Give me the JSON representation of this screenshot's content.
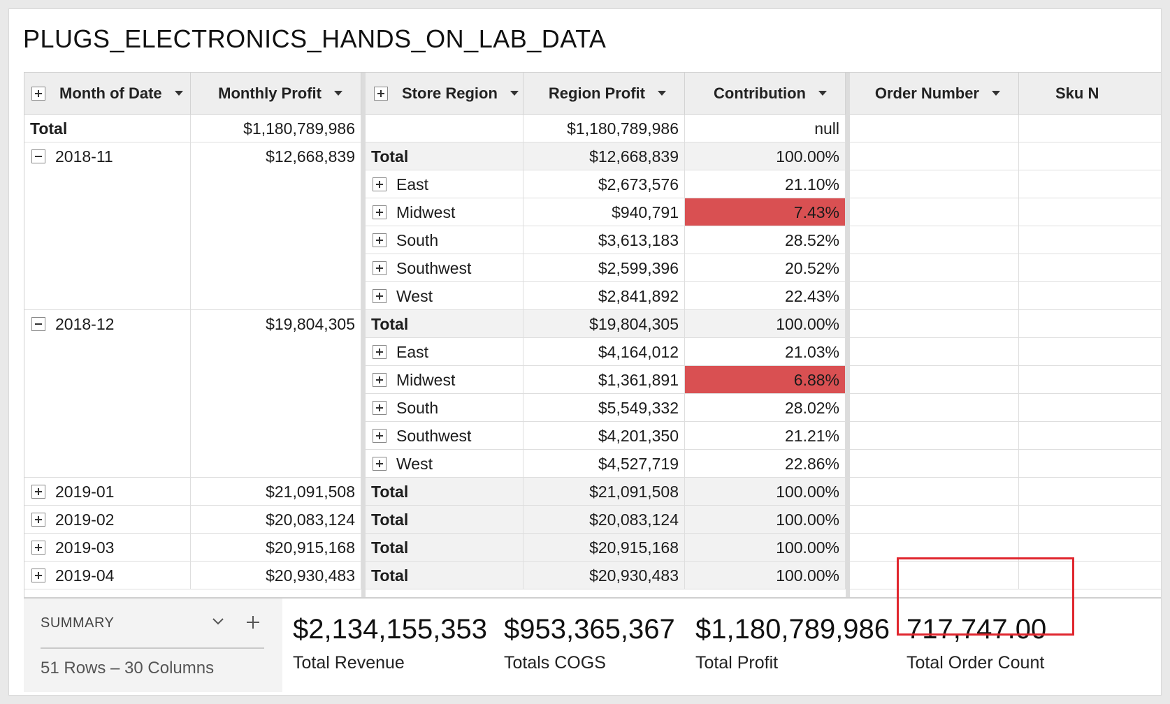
{
  "title": "PLUGS_ELECTRONICS_HANDS_ON_LAB_DATA",
  "headers": {
    "month_of_date": "Month of Date",
    "monthly_profit": "Monthly Profit",
    "store_region": "Store Region",
    "region_profit": "Region Profit",
    "contribution": "Contribution",
    "order_number": "Order Number",
    "sku_number": "Sku N"
  },
  "total_row": {
    "label": "Total",
    "monthly_profit": "$1,180,789,986",
    "region_profit": "$1,180,789,986",
    "contribution": "null"
  },
  "subtotal_label": "Total",
  "months": [
    {
      "month": "2018-11",
      "expanded": true,
      "profit": "$12,668,839",
      "total_profit": "$12,668,839",
      "total_contribution": "100.00%",
      "regions": [
        {
          "name": "East",
          "profit": "$2,673,576",
          "contribution": "21.10%",
          "flag": false
        },
        {
          "name": "Midwest",
          "profit": "$940,791",
          "contribution": "7.43%",
          "flag": true
        },
        {
          "name": "South",
          "profit": "$3,613,183",
          "contribution": "28.52%",
          "flag": false
        },
        {
          "name": "Southwest",
          "profit": "$2,599,396",
          "contribution": "20.52%",
          "flag": false
        },
        {
          "name": "West",
          "profit": "$2,841,892",
          "contribution": "22.43%",
          "flag": false
        }
      ]
    },
    {
      "month": "2018-12",
      "expanded": true,
      "profit": "$19,804,305",
      "total_profit": "$19,804,305",
      "total_contribution": "100.00%",
      "regions": [
        {
          "name": "East",
          "profit": "$4,164,012",
          "contribution": "21.03%",
          "flag": false
        },
        {
          "name": "Midwest",
          "profit": "$1,361,891",
          "contribution": "6.88%",
          "flag": true
        },
        {
          "name": "South",
          "profit": "$5,549,332",
          "contribution": "28.02%",
          "flag": false
        },
        {
          "name": "Southwest",
          "profit": "$4,201,350",
          "contribution": "21.21%",
          "flag": false
        },
        {
          "name": "West",
          "profit": "$4,527,719",
          "contribution": "22.86%",
          "flag": false
        }
      ]
    },
    {
      "month": "2019-01",
      "expanded": false,
      "profit": "$21,091,508",
      "total_profit": "$21,091,508",
      "total_contribution": "100.00%",
      "regions": []
    },
    {
      "month": "2019-02",
      "expanded": false,
      "profit": "$20,083,124",
      "total_profit": "$20,083,124",
      "total_contribution": "100.00%",
      "regions": []
    },
    {
      "month": "2019-03",
      "expanded": false,
      "profit": "$20,915,168",
      "total_profit": "$20,915,168",
      "total_contribution": "100.00%",
      "regions": []
    },
    {
      "month": "2019-04",
      "expanded": false,
      "profit": "$20,930,483",
      "total_profit": "$20,930,483",
      "total_contribution": "100.00%",
      "regions": []
    }
  ],
  "summary": {
    "label": "SUMMARY",
    "rows_columns": "51 Rows – 30 Columns",
    "metrics": [
      {
        "value": "$2,134,155,353",
        "label": "Total Revenue"
      },
      {
        "value": "$953,365,367",
        "label": "Totals COGS"
      },
      {
        "value": "$1,180,789,986",
        "label": "Total Profit"
      },
      {
        "value": "717,747.00",
        "label": "Total Order Count"
      }
    ]
  },
  "colors": {
    "flag_red": "#d95052",
    "highlight_border": "#e0262e",
    "header_bg": "#eeeeee"
  },
  "icons": [
    "expand-plus-icon",
    "collapse-minus-icon",
    "dropdown-caret-icon",
    "chevron-down-icon",
    "add-icon"
  ]
}
